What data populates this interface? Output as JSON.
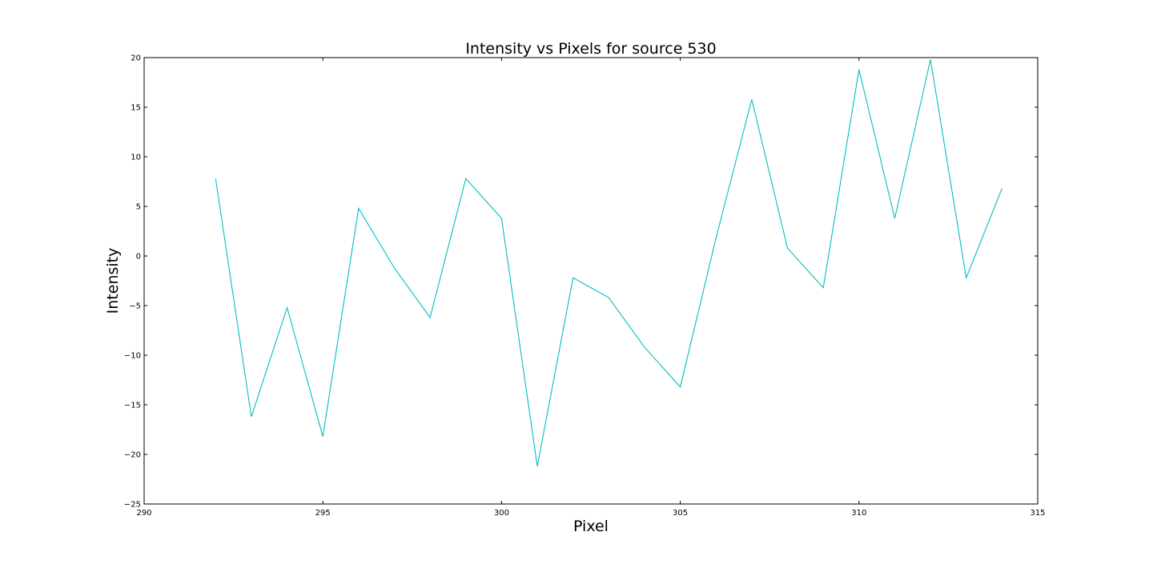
{
  "chart_data": {
    "type": "line",
    "title": "Intensity vs Pixels for source 530",
    "xlabel": "Pixel",
    "ylabel": "Intensity",
    "xlim": [
      290,
      315
    ],
    "ylim": [
      -25,
      20
    ],
    "xticks": [
      290,
      295,
      300,
      305,
      310,
      315
    ],
    "yticks": [
      -25,
      -20,
      -15,
      -10,
      -5,
      0,
      5,
      10,
      15,
      20
    ],
    "grid": false,
    "legend": "none",
    "series": [
      {
        "color": "#00bfbf",
        "x": [
          292,
          293,
          294,
          295,
          296,
          297,
          298,
          299,
          300,
          301,
          302,
          303,
          304,
          305,
          306,
          307,
          308,
          309,
          310,
          311,
          312,
          313,
          314
        ],
        "y": [
          7.8,
          -16.2,
          -5.2,
          -18.2,
          4.8,
          -1.2,
          -6.2,
          7.8,
          3.8,
          -21.2,
          -2.2,
          -4.2,
          -9.2,
          -13.2,
          1.8,
          15.8,
          0.8,
          -3.2,
          18.8,
          3.8,
          19.8,
          -2.2,
          6.8
        ]
      }
    ]
  }
}
